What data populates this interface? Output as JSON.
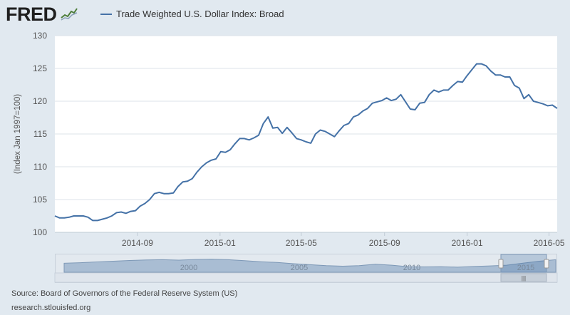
{
  "brand": {
    "name": "FRED"
  },
  "chart_data": {
    "type": "line",
    "legend": "Trade Weighted U.S. Dollar Index: Broad",
    "legend_position": "top-left",
    "ylabel": "(Index Jan 1997=100)",
    "ylim": [
      100,
      130
    ],
    "y_ticks": [
      100,
      105,
      110,
      115,
      120,
      125,
      130
    ],
    "x_tick_labels": [
      "2014-09",
      "2015-01",
      "2015-05",
      "2015-09",
      "2016-01",
      "2016-05"
    ],
    "grid": true,
    "series": [
      {
        "name": "Trade Weighted U.S. Dollar Index: Broad",
        "color": "#4572a7",
        "x": [
          "2014-05-02",
          "2014-05-09",
          "2014-05-16",
          "2014-05-23",
          "2014-05-30",
          "2014-06-06",
          "2014-06-13",
          "2014-06-20",
          "2014-06-27",
          "2014-07-04",
          "2014-07-11",
          "2014-07-18",
          "2014-07-25",
          "2014-08-01",
          "2014-08-08",
          "2014-08-15",
          "2014-08-22",
          "2014-08-29",
          "2014-09-05",
          "2014-09-12",
          "2014-09-19",
          "2014-09-26",
          "2014-10-03",
          "2014-10-10",
          "2014-10-17",
          "2014-10-24",
          "2014-10-31",
          "2014-11-07",
          "2014-11-14",
          "2014-11-21",
          "2014-11-28",
          "2014-12-05",
          "2014-12-12",
          "2014-12-19",
          "2014-12-26",
          "2015-01-02",
          "2015-01-09",
          "2015-01-16",
          "2015-01-23",
          "2015-01-30",
          "2015-02-06",
          "2015-02-13",
          "2015-02-20",
          "2015-02-27",
          "2015-03-06",
          "2015-03-13",
          "2015-03-20",
          "2015-03-27",
          "2015-04-03",
          "2015-04-10",
          "2015-04-17",
          "2015-04-24",
          "2015-05-01",
          "2015-05-08",
          "2015-05-15",
          "2015-05-22",
          "2015-05-29",
          "2015-06-05",
          "2015-06-12",
          "2015-06-19",
          "2015-06-26",
          "2015-07-03",
          "2015-07-10",
          "2015-07-17",
          "2015-07-24",
          "2015-07-31",
          "2015-08-07",
          "2015-08-14",
          "2015-08-21",
          "2015-08-28",
          "2015-09-04",
          "2015-09-11",
          "2015-09-18",
          "2015-09-25",
          "2015-10-02",
          "2015-10-09",
          "2015-10-16",
          "2015-10-23",
          "2015-10-30",
          "2015-11-06",
          "2015-11-13",
          "2015-11-20",
          "2015-11-27",
          "2015-12-04",
          "2015-12-11",
          "2015-12-18",
          "2015-12-25",
          "2016-01-01",
          "2016-01-08",
          "2016-01-15",
          "2016-01-22",
          "2016-01-29",
          "2016-02-05",
          "2016-02-12",
          "2016-02-19",
          "2016-02-26",
          "2016-03-04",
          "2016-03-11",
          "2016-03-18",
          "2016-03-25",
          "2016-04-01",
          "2016-04-08",
          "2016-04-15",
          "2016-04-22",
          "2016-04-29",
          "2016-05-06",
          "2016-05-13"
        ],
        "values": [
          102.5,
          102.2,
          102.2,
          102.3,
          102.5,
          102.5,
          102.5,
          102.3,
          101.8,
          101.8,
          102.0,
          102.2,
          102.5,
          103.0,
          103.1,
          102.9,
          103.2,
          103.3,
          104.0,
          104.4,
          105.0,
          105.9,
          106.1,
          105.9,
          105.9,
          106.0,
          107.0,
          107.7,
          107.8,
          108.2,
          109.2,
          110.0,
          110.6,
          111.0,
          111.2,
          112.3,
          112.2,
          112.6,
          113.5,
          114.3,
          114.3,
          114.1,
          114.4,
          114.8,
          116.6,
          117.6,
          115.9,
          116.0,
          115.1,
          116.0,
          115.2,
          114.3,
          114.1,
          113.8,
          113.6,
          115.0,
          115.6,
          115.4,
          115.0,
          114.6,
          115.5,
          116.3,
          116.6,
          117.6,
          117.9,
          118.5,
          118.9,
          119.7,
          119.9,
          120.1,
          120.5,
          120.1,
          120.3,
          121.0,
          119.9,
          118.8,
          118.7,
          119.7,
          119.8,
          121.0,
          121.7,
          121.4,
          121.7,
          121.7,
          122.4,
          123.0,
          122.9,
          123.9,
          124.8,
          125.7,
          125.7,
          125.4,
          124.6,
          124.0,
          124.0,
          123.7,
          123.7,
          122.4,
          122.0,
          120.4,
          121.0,
          120.0,
          119.8,
          119.6,
          119.3,
          119.4,
          118.9
        ]
      }
    ],
    "navigator": {
      "x_tick_labels": [
        "2000",
        "2005",
        "2010",
        "2015"
      ]
    },
    "source": "Source: Board of Governors of the Federal Reserve System (US)",
    "source_url": "research.stlouisfed.org"
  }
}
